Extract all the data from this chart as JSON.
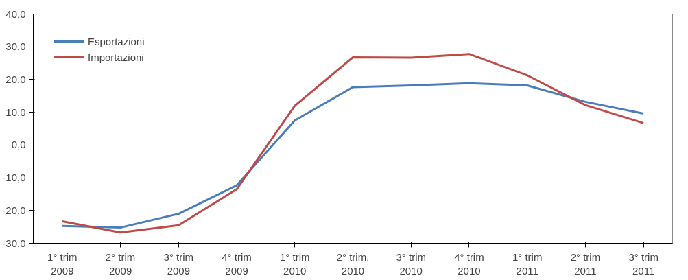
{
  "chart_data": {
    "type": "line",
    "categories": [
      "1° trim\n2009",
      "2° trim\n2009",
      "3° trim\n2009",
      "4° trim\n2009",
      "1° trim\n2010",
      "2° trim.\n2010",
      "3° trim\n2010",
      "4° trim\n2010",
      "1° trim\n2011",
      "2° trim\n2011",
      "3° trim\n2011"
    ],
    "series": [
      {
        "name": "Esportazioni",
        "color": "#4a7ebb",
        "values": [
          -24.7,
          -25.2,
          -21.0,
          -12.3,
          7.5,
          17.7,
          18.2,
          18.9,
          18.2,
          13.2,
          9.6
        ]
      },
      {
        "name": "Importazioni",
        "color": "#be4b48",
        "values": [
          -23.3,
          -26.7,
          -24.5,
          -13.5,
          12.0,
          26.8,
          26.7,
          27.8,
          21.3,
          12.2,
          6.7
        ]
      }
    ],
    "ylim": [
      -30,
      40
    ],
    "yticks": [
      {
        "value": -30,
        "label": "-30,0"
      },
      {
        "value": -20,
        "label": "-20,0"
      },
      {
        "value": -10,
        "label": "-10,0"
      },
      {
        "value": 0,
        "label": "0,0"
      },
      {
        "value": 10,
        "label": "10,0"
      },
      {
        "value": 20,
        "label": "20,0"
      },
      {
        "value": 30,
        "label": "30,0"
      },
      {
        "value": 40,
        "label": "40,0"
      }
    ],
    "grid": false,
    "legend": "top left",
    "line_style": "solid",
    "marker": "none"
  }
}
